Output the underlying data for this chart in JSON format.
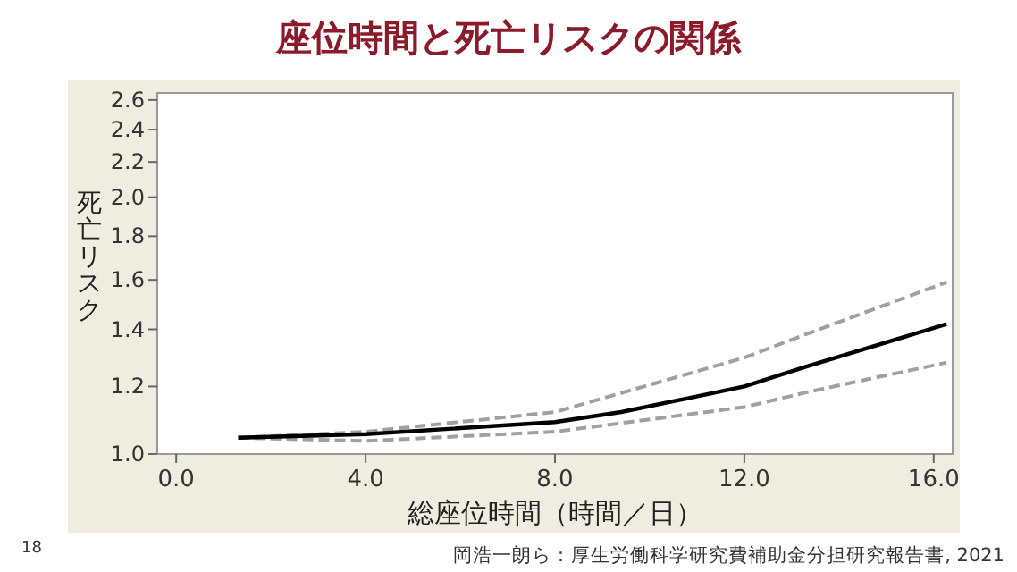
{
  "chart_data": {
    "type": "line",
    "title": "座位時間と死亡リスクの関係",
    "xlabel": "総座位時間（時間／日）",
    "ylabel": "死亡リスク",
    "annotations": [
      "18",
      "岡浩一朗ら：厚生労働科学研究費補助金分担研究報告書, 2021"
    ],
    "log": "y",
    "xlim": [
      -0.4,
      16.4
    ],
    "xticks": [
      {
        "value": 0,
        "label": "0.0"
      },
      {
        "value": 4,
        "label": "4.0"
      },
      {
        "value": 8,
        "label": "8.0"
      },
      {
        "value": 12,
        "label": "12.0"
      },
      {
        "value": 16,
        "label": "16.0"
      }
    ],
    "ylim": [
      1.0,
      2.65
    ],
    "yticks": [
      {
        "value": 1,
        "label": "1.0"
      },
      1.2,
      1.4,
      1.6,
      1.8,
      {
        "value": 2,
        "label": "2.0"
      },
      2.2,
      2.4,
      2.6
    ],
    "series": [
      {
        "color": "#a0a0a0",
        "line_style": "dashed",
        "x": [
          1.31,
          4,
          8,
          12,
          13.28,
          16.27
        ],
        "values": [
          1.045,
          1.062,
          1.12,
          1.297,
          1.38,
          1.59
        ]
      },
      {
        "color": "#a0a0a0",
        "line_style": "dashed",
        "x": [
          1.31,
          4,
          8,
          12,
          13.28,
          16.27
        ],
        "values": [
          1.045,
          1.036,
          1.062,
          1.135,
          1.18,
          1.28
        ]
      },
      {
        "color": "#000000",
        "line_style": "solid",
        "x": [
          1.31,
          4,
          8,
          9.4,
          12,
          13.28,
          16.27
        ],
        "values": [
          1.045,
          1.055,
          1.09,
          1.12,
          1.2,
          1.265,
          1.42
        ]
      }
    ]
  }
}
